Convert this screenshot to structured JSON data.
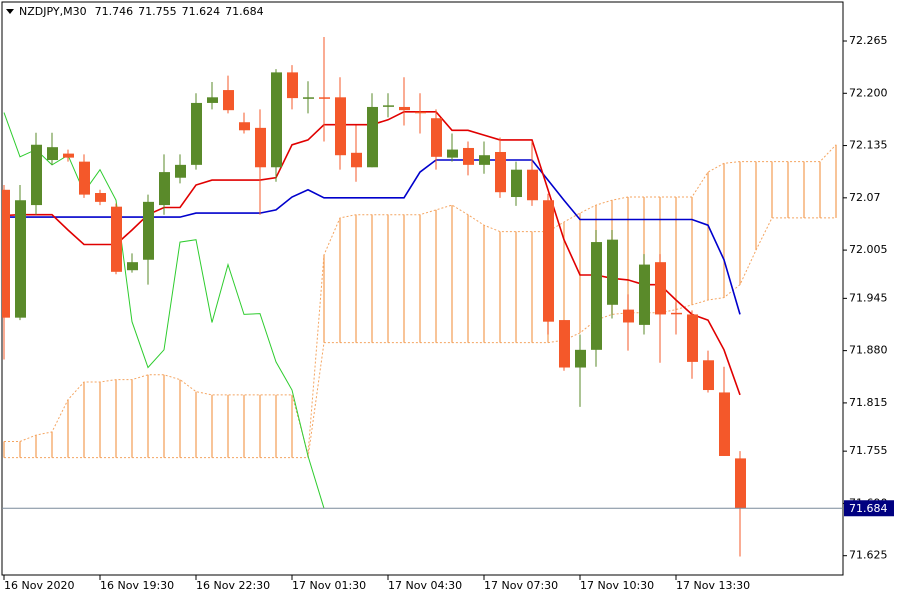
{
  "chart_data": {
    "type": "candlestick",
    "title": "NZDJPY,M30",
    "categories": [
      "16 Nov 2020",
      null,
      null,
      null,
      null,
      null,
      "16 Nov 19:30",
      null,
      null,
      null,
      null,
      null,
      "16 Nov 22:30",
      null,
      null,
      null,
      null,
      null,
      "17 Nov 01:30",
      null,
      null,
      null,
      null,
      null,
      "17 Nov 04:30",
      null,
      null,
      null,
      null,
      null,
      "17 Nov 07:30",
      null,
      null,
      null,
      null,
      null,
      "17 Nov 10:30",
      null,
      null,
      null,
      null,
      null,
      "17 Nov 13:30",
      null,
      null,
      null,
      null,
      null,
      null,
      null,
      null,
      null,
      null
    ],
    "candles": {
      "open": [
        72.08,
        71.921,
        72.061,
        72.117,
        72.125,
        72.115,
        72.076,
        72.059,
        71.98,
        71.993,
        72.061,
        72.095,
        72.111,
        72.188,
        72.204,
        72.164,
        72.157,
        72.108,
        72.226,
        72.195,
        72.195,
        72.195,
        72.126,
        72.108,
        72.184,
        72.183,
        72.177,
        72.169,
        72.12,
        72.132,
        72.111,
        72.127,
        72.071,
        72.105,
        72.067,
        71.918,
        71.859,
        71.881,
        71.937,
        71.931,
        71.912,
        71.99,
        71.927,
        71.925,
        71.868,
        71.828,
        71.746,
        null,
        null,
        null,
        null,
        null,
        null
      ],
      "high": [
        72.086,
        72.086,
        72.151,
        72.151,
        72.13,
        72.124,
        72.08,
        72.063,
        72.001,
        72.074,
        72.124,
        72.124,
        72.2,
        72.214,
        72.222,
        72.176,
        72.18,
        72.23,
        72.235,
        72.215,
        72.27,
        72.22,
        72.16,
        72.2,
        72.2,
        72.22,
        72.2,
        72.18,
        72.15,
        72.14,
        72.14,
        72.145,
        72.115,
        72.14,
        72.075,
        71.918,
        71.9,
        72.03,
        72.03,
        71.95,
        72.0,
        72.0,
        71.94,
        71.93,
        71.88,
        71.86,
        71.755,
        null,
        null,
        null,
        null,
        null,
        null
      ],
      "low": [
        71.869,
        71.918,
        72.049,
        72.111,
        72.115,
        72.07,
        72.061,
        71.975,
        71.977,
        71.962,
        72.049,
        72.088,
        72.105,
        72.18,
        72.175,
        72.15,
        72.049,
        72.09,
        72.18,
        72.175,
        72.14,
        72.105,
        72.09,
        72.108,
        72.17,
        72.16,
        72.15,
        72.105,
        72.115,
        72.098,
        72.1,
        72.07,
        72.06,
        72.06,
        71.9,
        71.855,
        71.81,
        71.86,
        71.92,
        71.88,
        71.9,
        71.865,
        71.9,
        71.845,
        71.828,
        71.749,
        71.624,
        null,
        null,
        null,
        null,
        null,
        null
      ],
      "close": [
        71.921,
        72.067,
        72.136,
        72.133,
        72.12,
        72.074,
        72.065,
        71.978,
        71.99,
        72.065,
        72.102,
        72.111,
        72.188,
        72.195,
        72.179,
        72.154,
        72.108,
        72.226,
        72.194,
        72.195,
        72.194,
        72.123,
        72.108,
        72.183,
        72.185,
        72.179,
        72.176,
        72.121,
        72.13,
        72.111,
        72.123,
        72.077,
        72.105,
        72.067,
        71.916,
        71.859,
        71.881,
        72.015,
        72.018,
        71.915,
        71.987,
        71.925,
        71.926,
        71.866,
        71.831,
        71.749,
        71.684,
        null,
        null,
        null,
        null,
        null,
        null
      ],
      "up_color": "#5a8a2a",
      "down_color": "#f4582a"
    },
    "lines": {
      "tenkan": {
        "color": "#e00000",
        "values": [
          72.048,
          72.049,
          72.049,
          72.049,
          72.03,
          72.012,
          72.012,
          72.012,
          72.03,
          72.049,
          72.058,
          72.058,
          72.086,
          72.092,
          72.092,
          72.092,
          72.092,
          72.095,
          72.136,
          72.142,
          72.161,
          72.161,
          72.161,
          72.161,
          72.167,
          72.177,
          72.177,
          72.177,
          72.154,
          72.154,
          72.148,
          72.142,
          72.142,
          72.142,
          72.08,
          72.018,
          71.974,
          71.974,
          71.97,
          71.968,
          71.962,
          71.962,
          71.943,
          71.925,
          71.918,
          71.881,
          71.825,
          null,
          null,
          null,
          null,
          null,
          null
        ]
      },
      "kijun": {
        "color": "#0000cc",
        "values": [
          72.046,
          72.046,
          72.046,
          72.046,
          72.046,
          72.046,
          72.046,
          72.046,
          72.046,
          72.046,
          72.046,
          72.046,
          72.051,
          72.051,
          72.051,
          72.051,
          72.051,
          72.055,
          72.071,
          72.08,
          72.07,
          72.07,
          72.07,
          72.07,
          72.07,
          72.07,
          72.102,
          72.117,
          72.117,
          72.117,
          72.117,
          72.117,
          72.117,
          72.117,
          72.092,
          72.067,
          72.043,
          72.043,
          72.043,
          72.043,
          72.043,
          72.043,
          72.043,
          72.043,
          72.036,
          71.993,
          71.925,
          null,
          null,
          null,
          null,
          null,
          null
        ]
      },
      "chikou": {
        "color": "#2ecc2e",
        "values": [
          72.176,
          72.121,
          72.13,
          72.111,
          72.123,
          72.077,
          72.105,
          72.067,
          71.916,
          71.859,
          71.881,
          72.015,
          72.018,
          71.915,
          71.987,
          71.925,
          71.926,
          71.866,
          71.831,
          71.749,
          71.684,
          null,
          null,
          null,
          null,
          null,
          null,
          null,
          null,
          null,
          null,
          null,
          null,
          null,
          null,
          null,
          null,
          null,
          null,
          null,
          null,
          null,
          null,
          null,
          null,
          null,
          null,
          null,
          null,
          null,
          null,
          null,
          null
        ]
      },
      "span_a": {
        "color": "#f4a460",
        "values": [
          71.767,
          71.767,
          71.775,
          71.779,
          71.819,
          71.841,
          71.841,
          71.844,
          71.844,
          71.85,
          71.85,
          71.844,
          71.829,
          71.825,
          71.825,
          71.825,
          71.825,
          71.825,
          71.825,
          71.751,
          71.999,
          72.045,
          72.049,
          72.049,
          72.049,
          72.049,
          72.049,
          72.055,
          72.061,
          72.049,
          72.036,
          72.028,
          72.028,
          72.028,
          72.028,
          72.04,
          72.051,
          72.061,
          72.067,
          72.071,
          72.071,
          72.071,
          72.071,
          72.071,
          72.102,
          72.113,
          72.115,
          72.115,
          72.115,
          72.115,
          72.115,
          72.115,
          72.136
        ]
      },
      "span_b": {
        "color": "#f4a460",
        "values": [
          71.747,
          71.747,
          71.747,
          71.747,
          71.747,
          71.747,
          71.747,
          71.747,
          71.747,
          71.747,
          71.747,
          71.747,
          71.747,
          71.747,
          71.747,
          71.747,
          71.747,
          71.747,
          71.747,
          71.747,
          71.89,
          71.89,
          71.89,
          71.89,
          71.89,
          71.89,
          71.89,
          71.89,
          71.89,
          71.89,
          71.89,
          71.89,
          71.89,
          71.89,
          71.89,
          71.893,
          71.902,
          71.918,
          71.925,
          71.927,
          71.927,
          71.927,
          71.931,
          71.937,
          71.943,
          71.946,
          71.962,
          72.005,
          72.045,
          72.045,
          72.045,
          72.045,
          72.045
        ]
      }
    },
    "cloud_color": "#f4a460",
    "price_line_color": "#7a8a9a",
    "price_label_color": "#000080",
    "ylim": [
      71.601,
      72.316
    ],
    "yticks": [
      72.265,
      {
        "value": 72.2,
        "label": "72.200"
      },
      72.135,
      72.07,
      72.005,
      71.945,
      {
        "value": 71.88,
        "label": "71.880"
      },
      71.815,
      71.755,
      {
        "value": 71.69,
        "label": "71.690"
      },
      71.625
    ]
  }
}
